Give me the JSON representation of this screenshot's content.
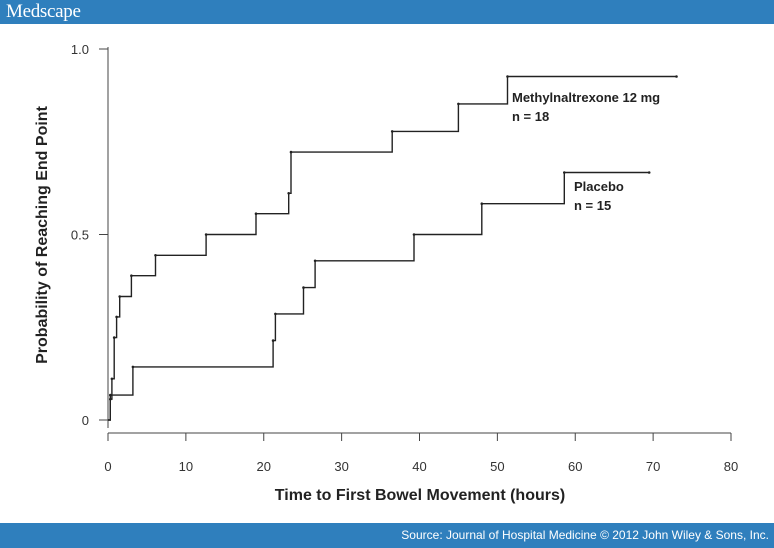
{
  "header": {
    "brand": "Medscape"
  },
  "footer": {
    "source": "Source: Journal of Hospital Medicine © 2012 John Wiley & Sons, Inc."
  },
  "colors": {
    "bar": "#2f7fbd",
    "line": "#222222"
  },
  "chart_data": {
    "type": "line",
    "title": "",
    "xlabel": "Time to First Bowel Movement (hours)",
    "ylabel": "Probability of Reaching End Point",
    "xlim": [
      0,
      80
    ],
    "ylim": [
      0,
      1.0
    ],
    "x_ticks": [
      0,
      10,
      20,
      30,
      40,
      50,
      60,
      70,
      80
    ],
    "y_ticks": [
      0,
      0.5,
      1.0
    ],
    "x_tick_labels": [
      "0",
      "10",
      "20",
      "30",
      "40",
      "50",
      "60",
      "70",
      "80"
    ],
    "y_tick_labels": [
      "0",
      "0.5",
      "1.0"
    ],
    "grid": false,
    "series": [
      {
        "name": "Methylnaltrexone 12 mg",
        "n_label": "n = 18",
        "step": true,
        "x": [
          0,
          0.3,
          0.5,
          0.8,
          1.1,
          1.5,
          3.0,
          6.1,
          12.6,
          19.0,
          23.2,
          23.5,
          36.5,
          45.0,
          51.3,
          73.0
        ],
        "y": [
          0,
          0.056,
          0.111,
          0.222,
          0.278,
          0.333,
          0.389,
          0.444,
          0.5,
          0.556,
          0.611,
          0.722,
          0.778,
          0.852,
          0.926,
          0.926
        ]
      },
      {
        "name": "Placebo",
        "n_label": "n = 15",
        "step": true,
        "x": [
          0,
          0.3,
          3.2,
          21.2,
          21.5,
          25.1,
          26.6,
          39.3,
          48.0,
          58.6,
          69.5
        ],
        "y": [
          0,
          0.067,
          0.143,
          0.214,
          0.286,
          0.357,
          0.429,
          0.5,
          0.583,
          0.667,
          0.667
        ]
      }
    ]
  }
}
